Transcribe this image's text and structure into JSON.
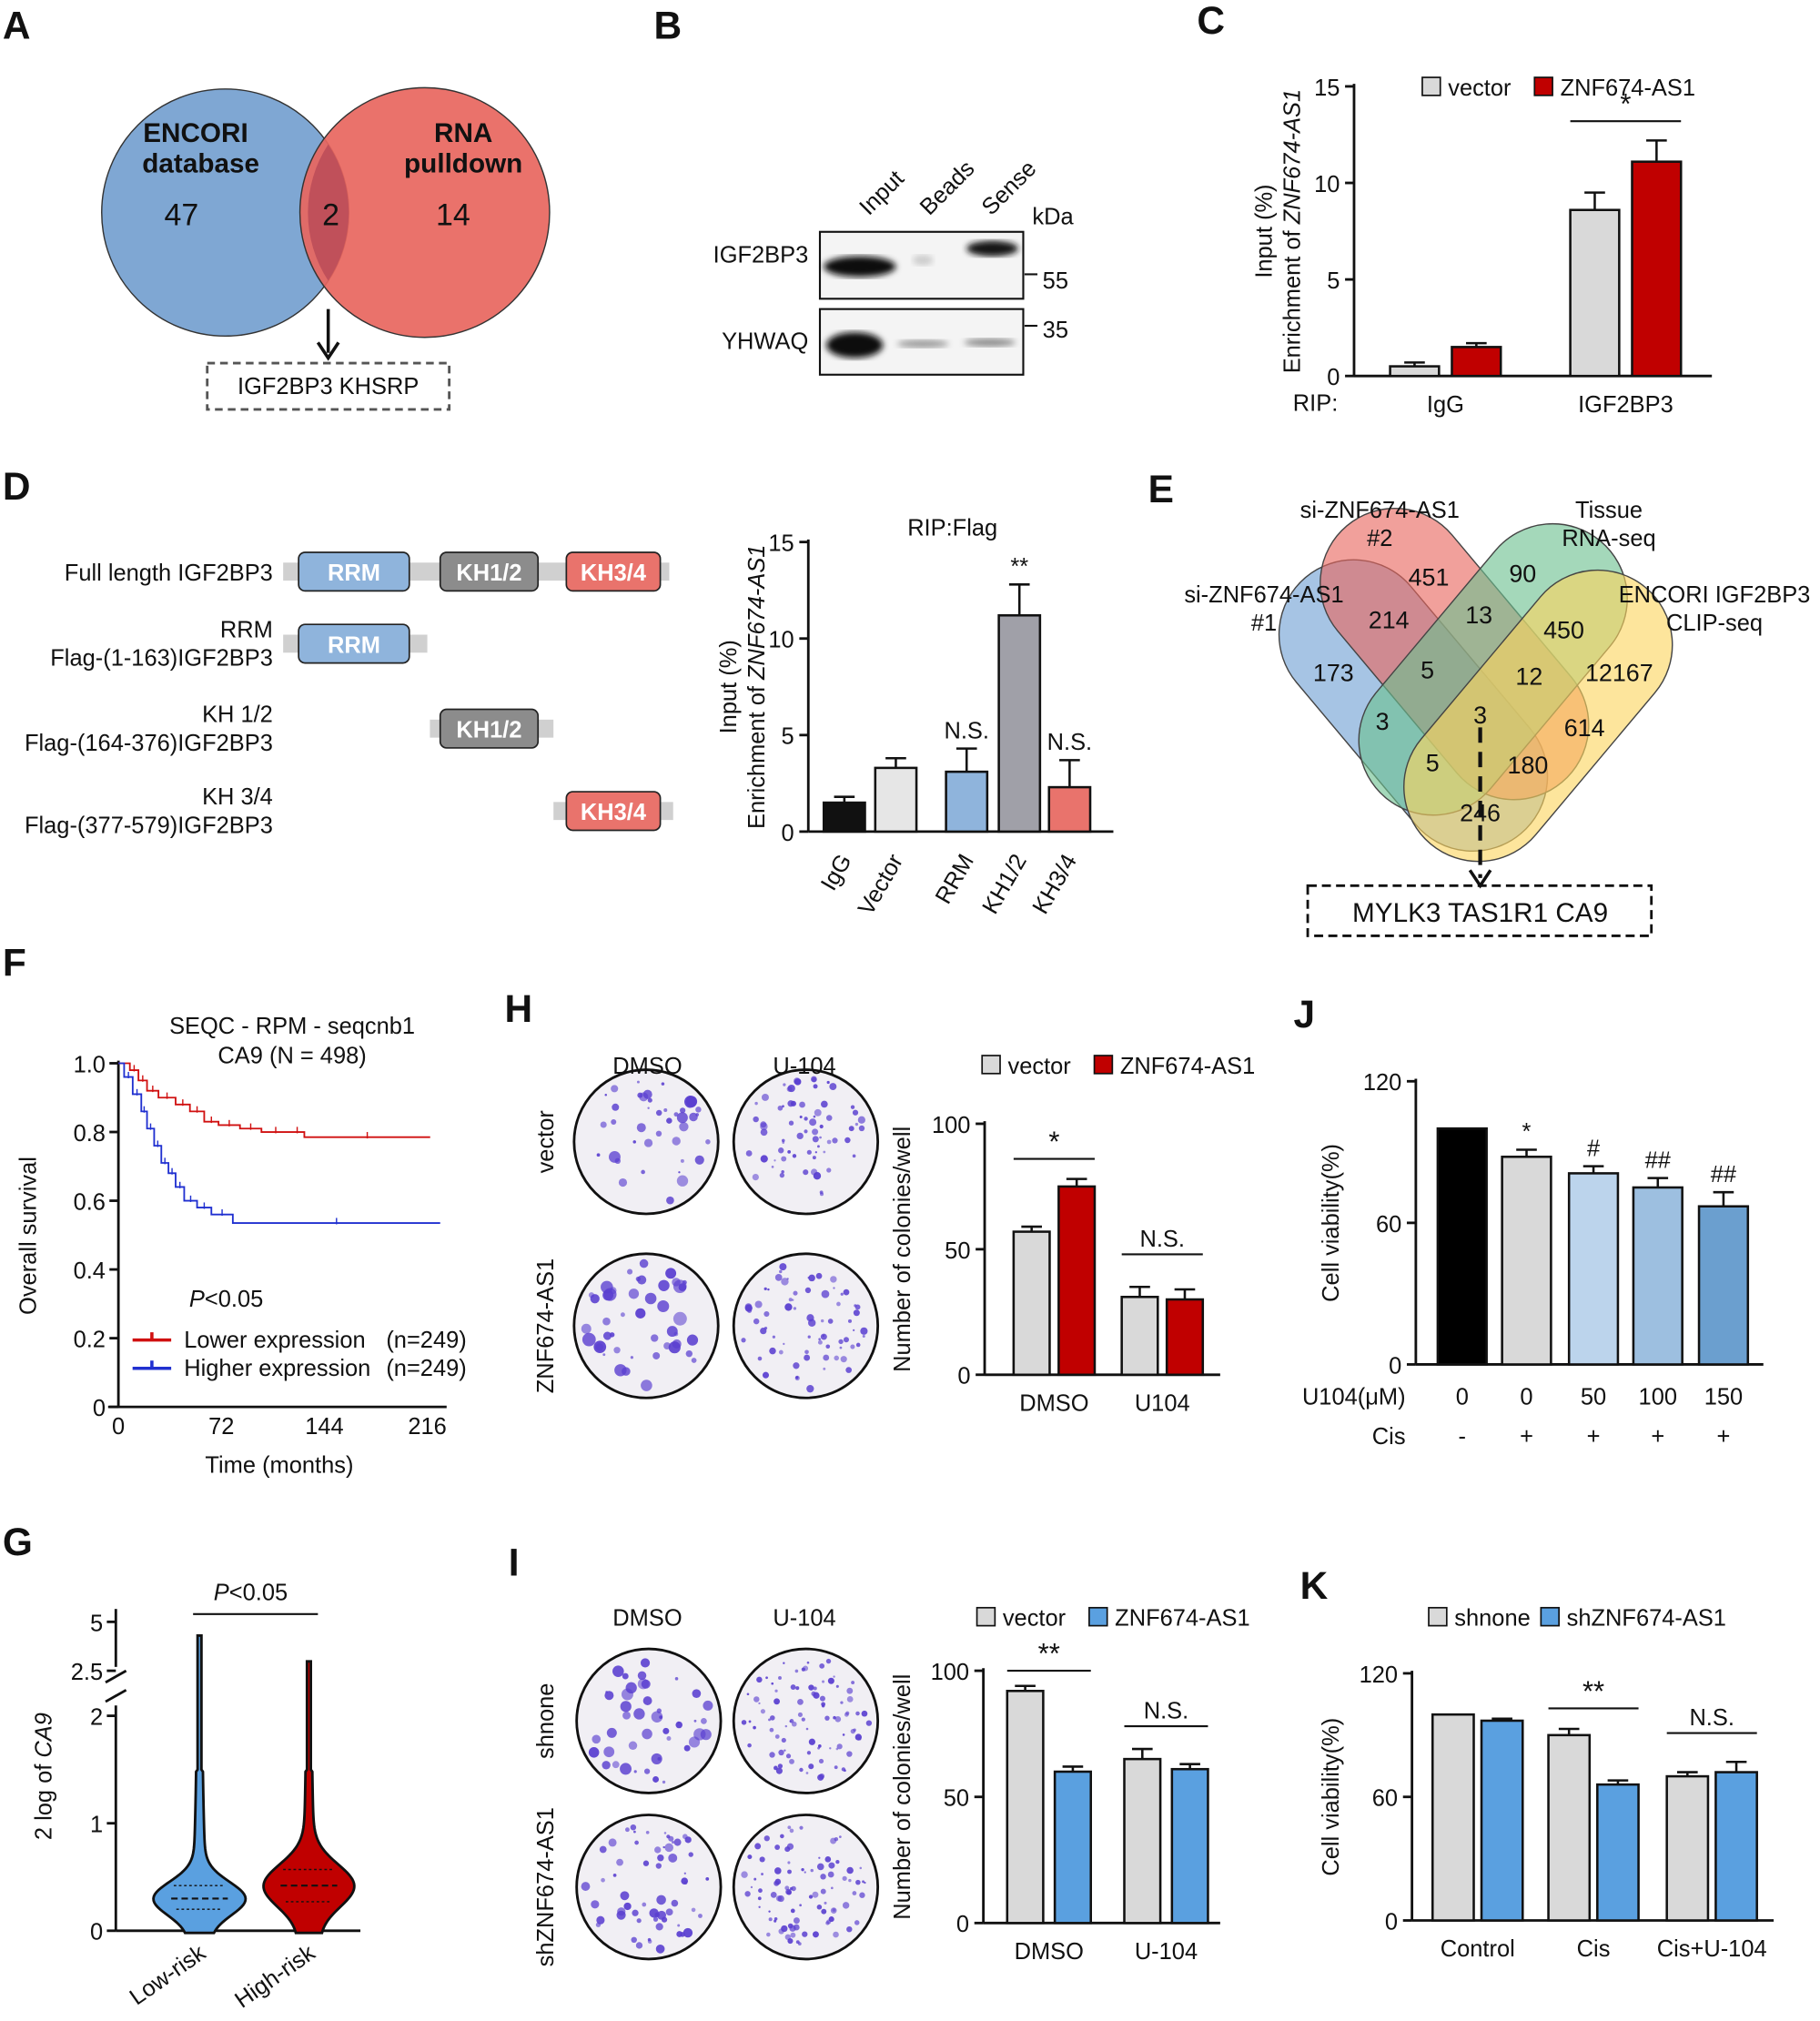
{
  "panel_labels": [
    "A",
    "B",
    "C",
    "D",
    "E",
    "F",
    "G",
    "H",
    "I",
    "J",
    "K"
  ],
  "panelA": {
    "left_set": [
      "ENCORI",
      "database"
    ],
    "left_count": "47",
    "right_set": [
      "RNA",
      "pulldown"
    ],
    "right_count": "14",
    "overlap_count": "2",
    "result": "IGF2BP3  KHSRP",
    "colors": {
      "left": "#7fa7d3",
      "right": "#e8665e"
    }
  },
  "panelB": {
    "lanes": [
      "Input",
      "Beads",
      "Sense"
    ],
    "blots": [
      "IGF2BP3",
      "YHWAQ"
    ],
    "kda_label": "kDa",
    "markers": [
      "55",
      "35"
    ]
  },
  "panelD_domains": {
    "rows": [
      {
        "label": [
          "Full length IGF2BP3"
        ],
        "domains": [
          "RRM",
          "KH1/2",
          "KH3/4"
        ]
      },
      {
        "label": [
          "RRM",
          "Flag-(1-163)IGF2BP3"
        ],
        "domains": [
          "RRM"
        ]
      },
      {
        "label": [
          "KH 1/2",
          "Flag-(164-376)IGF2BP3"
        ],
        "domains": [
          "KH1/2"
        ]
      },
      {
        "label": [
          "KH 3/4",
          "Flag-(377-579)IGF2BP3"
        ],
        "domains": [
          "KH3/4"
        ]
      }
    ],
    "colors": {
      "RRM": "#8fb4dc",
      "KH1/2": "#8c8c8c",
      "KH3/4": "#e9736c",
      "backbone": "#d0d0d0"
    }
  },
  "panelE": {
    "sets": [
      [
        "si-ZNF674-AS1",
        "#1"
      ],
      [
        "si-ZNF674-AS1",
        "#2"
      ],
      [
        "Tissue",
        "RNA-seq"
      ],
      [
        "ENCORI IGF2BP3",
        "CLIP-seq"
      ]
    ],
    "region_counts": [
      "451",
      "90",
      "214",
      "13",
      "450",
      "173",
      "5",
      "12",
      "12167",
      "3",
      "3",
      "614",
      "5",
      "180",
      "246"
    ],
    "result": "MYLK3 TAS1R1 CA9",
    "colors": [
      "#6f9fd3",
      "#e8665e",
      "#6cc08f",
      "#fcd55f"
    ]
  },
  "panelH": {
    "columns": [
      "DMSO",
      "U-104"
    ],
    "rows": [
      "vector",
      "ZNF674-AS1"
    ]
  },
  "panelI": {
    "columns": [
      "DMSO",
      "U-104"
    ],
    "rows": [
      "shnone",
      "shZNF674-AS1"
    ]
  },
  "chart_data": [
    {
      "panel": "C",
      "type": "bar",
      "ylabel_line1": "Input (%)",
      "ylabel_prefix": "Enrichment of ",
      "ylabel_gene": "ZNF674-AS1",
      "xprefix": "RIP:",
      "ylim": [
        0,
        15
      ],
      "yticks": [
        0,
        5,
        10,
        15
      ],
      "categories": [
        "IgG",
        "IGF2BP3"
      ],
      "series": [
        {
          "name": "vector",
          "color": "#d9d9d9",
          "values": [
            0.5,
            8.6
          ],
          "errors": [
            0.2,
            0.9
          ]
        },
        {
          "name": "ZNF674-AS1",
          "color": "#c00000",
          "values": [
            1.5,
            11.1
          ],
          "errors": [
            0.2,
            1.1
          ]
        }
      ],
      "annotations": [
        {
          "text": "*",
          "from": [
            1,
            0
          ],
          "to": [
            1,
            1
          ],
          "y": 13.2
        }
      ],
      "legend": "top"
    },
    {
      "panel": "D",
      "type": "bar",
      "title": "RIP:Flag",
      "ylabel_line1": "Input (%)",
      "ylabel_prefix": "Enrichment of ",
      "ylabel_gene": "ZNF674-AS1",
      "ylim": [
        0,
        15
      ],
      "yticks": [
        0,
        5,
        10,
        15
      ],
      "categories": [
        "IgG",
        "Vector",
        "RRM",
        "KH1/2",
        "KH3/4"
      ],
      "series": [
        {
          "name": "RIP:Flag",
          "colors": [
            "#111111",
            "#e6e6e6",
            "#8fb4dc",
            "#a0a0a8",
            "#e9736c"
          ],
          "values": [
            1.5,
            3.3,
            3.1,
            11.2,
            2.3
          ],
          "errors": [
            0.3,
            0.5,
            1.2,
            1.6,
            1.4
          ]
        }
      ],
      "annotations": [
        {
          "text": "N.S.",
          "at": [
            2,
            0
          ]
        },
        {
          "text": "**",
          "at": [
            3,
            0
          ]
        },
        {
          "text": "N.S.",
          "at": [
            4,
            0
          ]
        }
      ]
    },
    {
      "panel": "F",
      "type": "line",
      "title": [
        "SEQC - RPM - seqcnb1",
        "CA9 (N = 498)"
      ],
      "xlabel": "Time (months)",
      "ylabel": "Overall survival",
      "xlim": [
        0,
        225
      ],
      "xticks": [
        0,
        72,
        144,
        216
      ],
      "ylim": [
        0,
        1
      ],
      "yticks": [
        "0",
        "0.2",
        "0.4",
        "0.6",
        "0.8",
        "1.0"
      ],
      "pvalue_label": "P",
      "pvalue_text": "<0.05",
      "series": [
        {
          "name": "Lower expression",
          "n_label": "(n=249)",
          "color": "#d01010",
          "x": [
            0,
            8,
            14,
            20,
            28,
            40,
            50,
            60,
            70,
            85,
            100,
            120,
            130,
            218
          ],
          "y": [
            1,
            0.98,
            0.95,
            0.92,
            0.9,
            0.88,
            0.86,
            0.83,
            0.82,
            0.81,
            0.8,
            0.8,
            0.785,
            0.785
          ]
        },
        {
          "name": "Higher expression",
          "n_label": "(n=249)",
          "color": "#2030d0",
          "x": [
            0,
            4,
            10,
            16,
            20,
            25,
            30,
            35,
            40,
            46,
            55,
            65,
            80,
            225
          ],
          "y": [
            1,
            0.96,
            0.91,
            0.86,
            0.81,
            0.76,
            0.71,
            0.68,
            0.64,
            0.6,
            0.58,
            0.56,
            0.535,
            0.535
          ]
        }
      ]
    },
    {
      "panel": "G",
      "type": "violin",
      "ylabel_prefix": "2 log of ",
      "ylabel_gene": "CA9",
      "yticks": [
        "0",
        "1",
        "2",
        "2.5",
        "5"
      ],
      "categories": [
        "Low-risk",
        "High-risk"
      ],
      "colors": [
        "#5aa0e0",
        "#c00000"
      ],
      "median": [
        0.3,
        0.42
      ],
      "q1": [
        0.2,
        0.27
      ],
      "q3": [
        0.42,
        0.57
      ],
      "max": [
        4.3,
        3.0
      ],
      "annotation_label": "P",
      "annotation_text": "<0.05"
    },
    {
      "panel": "H",
      "type": "bar",
      "ylabel": "Number of colonies/well",
      "ylim": [
        0,
        100
      ],
      "yticks": [
        0,
        50,
        100
      ],
      "categories": [
        "DMSO",
        "U104"
      ],
      "series": [
        {
          "name": "vector",
          "color": "#d9d9d9",
          "values": [
            57,
            31
          ],
          "errors": [
            2,
            4
          ]
        },
        {
          "name": "ZNF674-AS1",
          "color": "#c00000",
          "values": [
            75,
            30
          ],
          "errors": [
            3,
            4
          ]
        }
      ],
      "annotations": [
        {
          "text": "*",
          "from": [
            0,
            0
          ],
          "to": [
            0,
            1
          ],
          "y": 86
        },
        {
          "text": "N.S.",
          "from": [
            1,
            0
          ],
          "to": [
            1,
            1
          ],
          "y": 48
        }
      ]
    },
    {
      "panel": "I",
      "type": "bar",
      "ylabel": "Number of colonies/well",
      "ylim": [
        0,
        100
      ],
      "yticks": [
        0,
        50,
        100
      ],
      "categories": [
        "DMSO",
        "U-104"
      ],
      "series": [
        {
          "name": "vector",
          "color": "#d9d9d9",
          "values": [
            92,
            65
          ],
          "errors": [
            2,
            4
          ]
        },
        {
          "name": "ZNF674-AS1",
          "color": "#5aa0e0",
          "values": [
            60,
            61
          ],
          "errors": [
            2,
            2
          ]
        }
      ],
      "annotations": [
        {
          "text": "**",
          "from": [
            0,
            0
          ],
          "to": [
            0,
            1
          ],
          "y": 100
        },
        {
          "text": "N.S.",
          "from": [
            1,
            0
          ],
          "to": [
            1,
            1
          ],
          "y": 78
        }
      ]
    },
    {
      "panel": "J",
      "type": "bar",
      "ylabel": "Cell viability(%)",
      "ylim": [
        0,
        120
      ],
      "yticks": [
        0,
        60,
        120
      ],
      "row_labels": [
        "U104(μM)",
        "Cis"
      ],
      "rows": [
        [
          "0",
          "0",
          "50",
          "100",
          "150"
        ],
        [
          "-",
          "+",
          "+",
          "+",
          "+"
        ]
      ],
      "series": [
        {
          "name": "Cell viability",
          "colors": [
            "#000000",
            "#d9d9d9",
            "#bcd4ec",
            "#9dbfe0",
            "#6b9fcf"
          ],
          "values": [
            100,
            88,
            81,
            75,
            67
          ],
          "errors": [
            0,
            3,
            3,
            4,
            6
          ]
        }
      ],
      "annotations": [
        {
          "text": "*",
          "at": [
            1,
            0
          ]
        },
        {
          "text": "#",
          "at": [
            2,
            0
          ]
        },
        {
          "text": "##",
          "at": [
            3,
            0
          ]
        },
        {
          "text": "##",
          "at": [
            4,
            0
          ]
        }
      ]
    },
    {
      "panel": "K",
      "type": "bar",
      "ylabel": "Cell viability(%)",
      "ylim": [
        0,
        120
      ],
      "yticks": [
        0,
        60,
        120
      ],
      "categories": [
        "Control",
        "Cis",
        "Cis+U-104"
      ],
      "series": [
        {
          "name": "shnone",
          "color": "#d9d9d9",
          "values": [
            100,
            90,
            70
          ],
          "errors": [
            0,
            3,
            2
          ]
        },
        {
          "name": "shZNF674-AS1",
          "color": "#5aa0e0",
          "values": [
            97,
            66,
            72
          ],
          "errors": [
            1,
            2,
            5
          ]
        }
      ],
      "annotations": [
        {
          "text": "**",
          "from": [
            1,
            0
          ],
          "to": [
            1,
            1
          ],
          "y": 103
        },
        {
          "text": "N.S.",
          "from": [
            2,
            0
          ],
          "to": [
            2,
            1
          ],
          "y": 91
        }
      ]
    }
  ]
}
